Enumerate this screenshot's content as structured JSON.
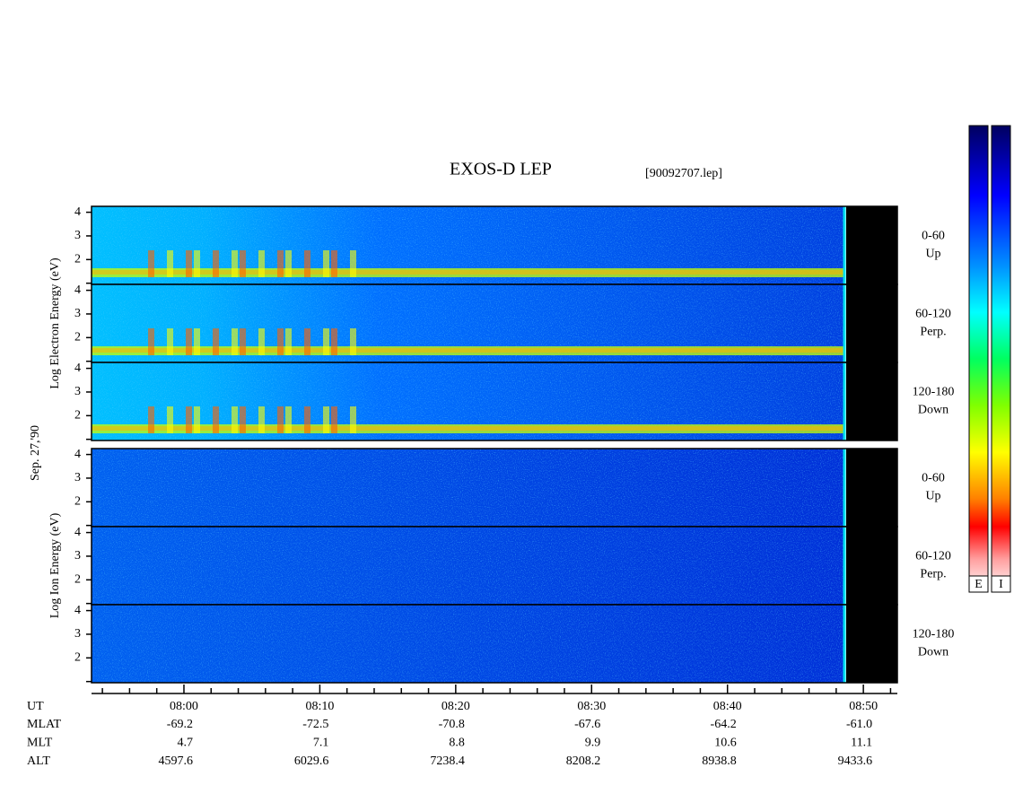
{
  "chart_data": {
    "type": "spectrogram",
    "title": "EXOS-D LEP",
    "subtitle": "[90092707.lep]",
    "date_label": "Sep. 27,'90",
    "groups": [
      {
        "ylabel": "Log Electron Energy (eV)",
        "panels": [
          {
            "label": "0-60",
            "sublabel": "Up"
          },
          {
            "label": "60-120",
            "sublabel": "Perp."
          },
          {
            "label": "120-180",
            "sublabel": "Down"
          }
        ]
      },
      {
        "ylabel": "Log Ion Energy (eV)",
        "panels": [
          {
            "label": "0-60",
            "sublabel": "Up"
          },
          {
            "label": "60-120",
            "sublabel": "Perp."
          },
          {
            "label": "120-180",
            "sublabel": "Down"
          }
        ]
      }
    ],
    "ylim": [
      0.95,
      4.25
    ],
    "yticks": [
      2,
      3,
      4
    ],
    "yminorticks": [
      1
    ],
    "xlim": [
      473.2,
      532.5
    ],
    "xticks": [
      {
        "value": 480,
        "label": "08:00"
      },
      {
        "value": 490,
        "label": "08:10"
      },
      {
        "value": 500,
        "label": "08:20"
      },
      {
        "value": 510,
        "label": "08:30"
      },
      {
        "value": 520,
        "label": "08:40"
      },
      {
        "value": 530,
        "label": "08:50"
      }
    ],
    "xminorticks": [
      474,
      476,
      478,
      482,
      484,
      486,
      488,
      492,
      494,
      496,
      498,
      502,
      504,
      506,
      508,
      512,
      514,
      516,
      518,
      522,
      524,
      526,
      528,
      532
    ],
    "xlabel": "UT",
    "ephemeris": [
      {
        "name": "MLAT",
        "values": [
          "-69.2",
          "-72.5",
          "-70.8",
          "-67.6",
          "-64.2",
          "-61.0"
        ]
      },
      {
        "name": "MLT",
        "values": [
          "4.7",
          "7.1",
          "8.8",
          "9.9",
          "10.6",
          "11.1"
        ]
      },
      {
        "name": "ALT",
        "values": [
          "4597.6",
          "6029.6",
          "7238.4",
          "8208.2",
          "8938.8",
          "9433.6"
        ]
      }
    ],
    "colorbars": [
      "E",
      "I"
    ]
  }
}
